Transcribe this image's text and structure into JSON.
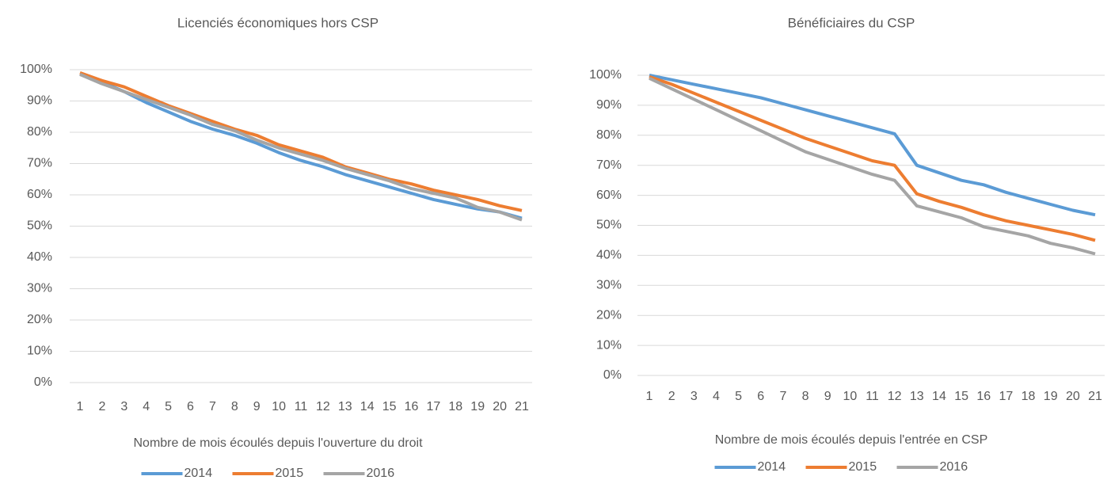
{
  "chart_data": [
    {
      "type": "line",
      "title": "Licenciés économiques hors CSP",
      "x_label": "Nombre de mois écoulés depuis l'ouverture du droit",
      "categories": [
        "1",
        "2",
        "3",
        "4",
        "5",
        "6",
        "7",
        "8",
        "9",
        "10",
        "11",
        "12",
        "13",
        "14",
        "15",
        "16",
        "17",
        "18",
        "19",
        "20",
        "21"
      ],
      "ylim": [
        0,
        100
      ],
      "yticks": [
        {
          "value": 0,
          "label": "0%"
        },
        {
          "value": 10,
          "label": "10%"
        },
        {
          "value": 20,
          "label": "20%"
        },
        {
          "value": 30,
          "label": "30%"
        },
        {
          "value": 40,
          "label": "40%"
        },
        {
          "value": 50,
          "label": "50%"
        },
        {
          "value": 60,
          "label": "60%"
        },
        {
          "value": 70,
          "label": "70%"
        },
        {
          "value": 80,
          "label": "80%"
        },
        {
          "value": 90,
          "label": "90%"
        },
        {
          "value": 100,
          "label": "100%"
        }
      ],
      "grid": true,
      "series": [
        {
          "name": "2014",
          "color": "#5b9bd5",
          "values": [
            98.5,
            96,
            93,
            89.5,
            86.5,
            83.5,
            81,
            79,
            76.5,
            73.5,
            71,
            69,
            66.5,
            64.5,
            62.5,
            60.5,
            58.5,
            57,
            55.5,
            54.5,
            52.5
          ]
        },
        {
          "name": "2015",
          "color": "#ed7d31",
          "values": [
            99,
            96.5,
            94.5,
            91.5,
            88.5,
            86,
            83.5,
            81,
            79,
            76,
            74,
            72,
            69,
            67,
            65,
            63.5,
            61.5,
            60,
            58.5,
            56.5,
            55
          ]
        },
        {
          "name": "2016",
          "color": "#a5a5a5",
          "values": [
            98.5,
            95.5,
            93,
            90.5,
            88,
            85.5,
            82.5,
            80.5,
            77.5,
            75,
            73,
            71,
            68.5,
            66.5,
            64.5,
            62,
            60.5,
            59,
            56,
            54.5,
            52
          ]
        }
      ]
    },
    {
      "type": "line",
      "title": "Bénéficiaires du CSP",
      "x_label": "Nombre de mois écoulés depuis l'entrée en CSP",
      "categories": [
        "1",
        "2",
        "3",
        "4",
        "5",
        "6",
        "7",
        "8",
        "9",
        "10",
        "11",
        "12",
        "13",
        "14",
        "15",
        "16",
        "17",
        "18",
        "19",
        "20",
        "21"
      ],
      "ylim": [
        0,
        100
      ],
      "yticks": [
        {
          "value": 0,
          "label": "0%"
        },
        {
          "value": 10,
          "label": "10%"
        },
        {
          "value": 20,
          "label": "20%"
        },
        {
          "value": 30,
          "label": "30%"
        },
        {
          "value": 40,
          "label": "40%"
        },
        {
          "value": 50,
          "label": "50%"
        },
        {
          "value": 60,
          "label": "60%"
        },
        {
          "value": 70,
          "label": "70%"
        },
        {
          "value": 80,
          "label": "80%"
        },
        {
          "value": 90,
          "label": "90%"
        },
        {
          "value": 100,
          "label": "100%"
        }
      ],
      "grid": true,
      "series": [
        {
          "name": "2014",
          "color": "#5b9bd5",
          "values": [
            100,
            98.5,
            97,
            95.5,
            94,
            92.5,
            90.5,
            88.5,
            86.5,
            84.5,
            82.5,
            80.5,
            70,
            67.5,
            65,
            63.5,
            61,
            59,
            57,
            55,
            53.5
          ]
        },
        {
          "name": "2015",
          "color": "#ed7d31",
          "values": [
            99.5,
            97,
            94,
            91,
            88,
            85,
            82,
            79,
            76.5,
            74,
            71.5,
            70,
            60.5,
            58,
            56,
            53.5,
            51.5,
            50,
            48.5,
            47,
            45
          ]
        },
        {
          "name": "2016",
          "color": "#a5a5a5",
          "values": [
            99,
            95.5,
            92,
            88.5,
            85,
            81.5,
            78,
            74.5,
            72,
            69.5,
            67,
            65,
            56.5,
            54.5,
            52.5,
            49.5,
            48,
            46.5,
            44,
            42.5,
            40.5
          ]
        }
      ]
    }
  ]
}
